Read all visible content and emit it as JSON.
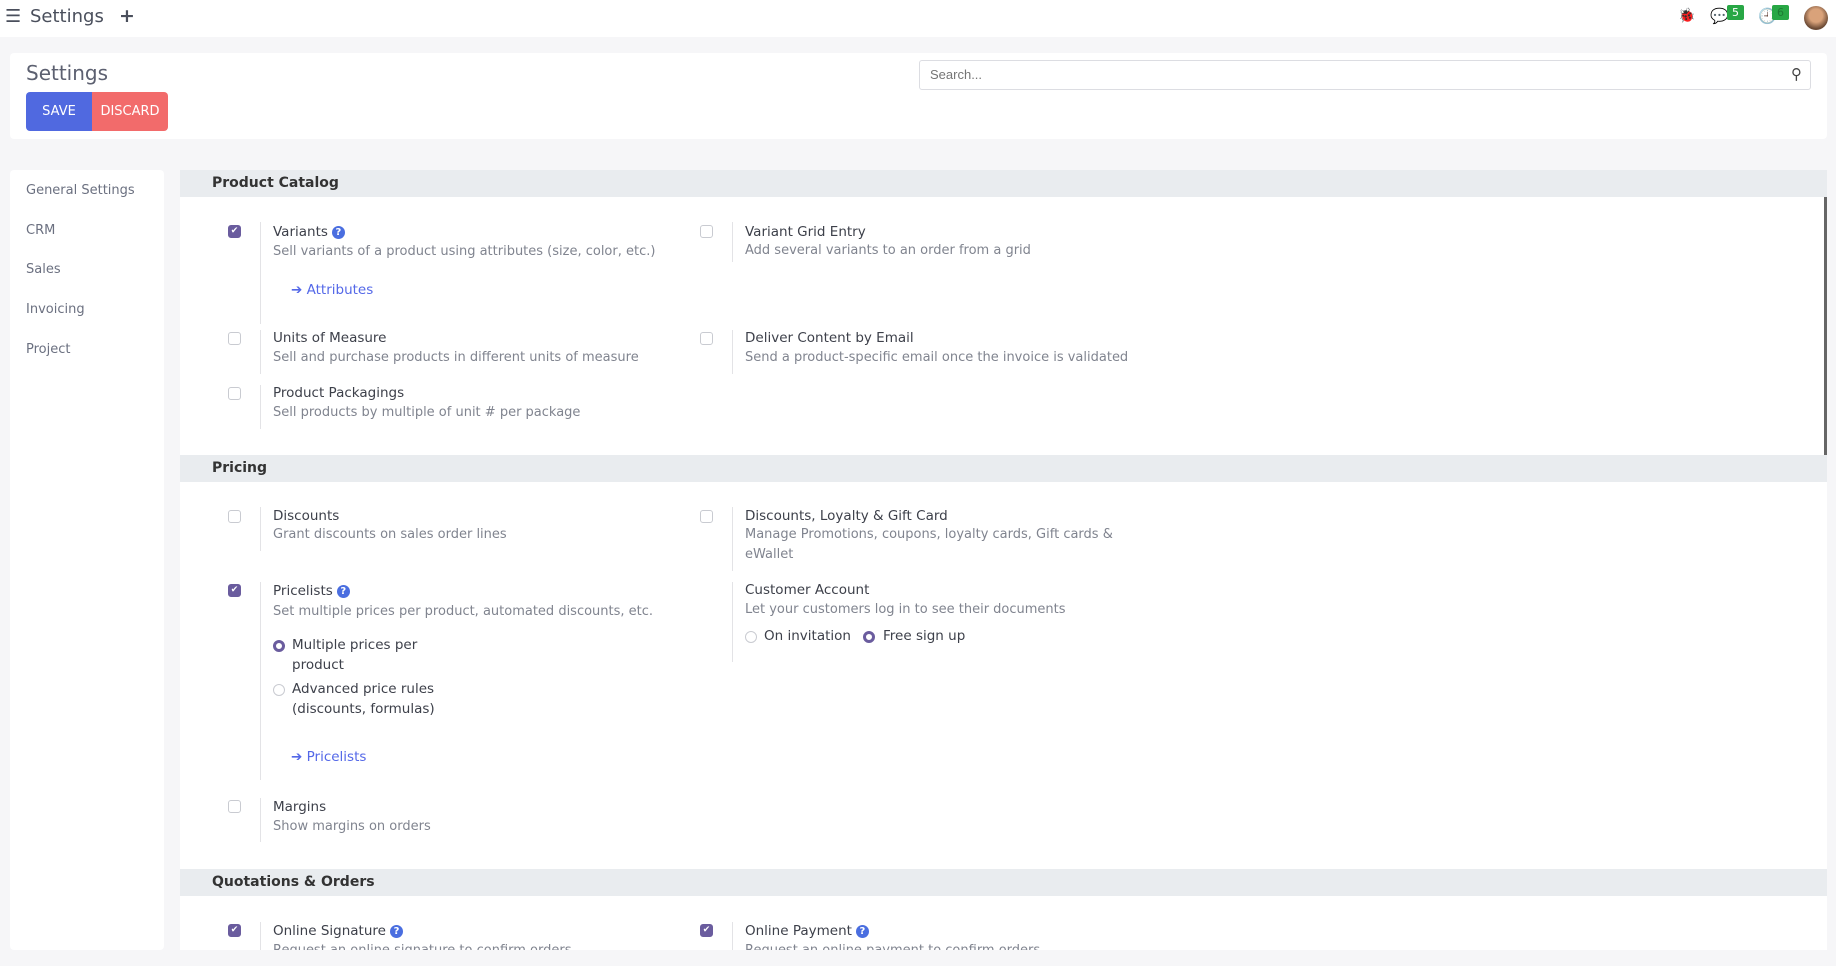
{
  "topbar": {
    "title": "Settings",
    "chat_count": "5",
    "activity_count": "6"
  },
  "header": {
    "title": "Settings",
    "save": "SAVE",
    "discard": "DISCARD",
    "search_placeholder": "Search..."
  },
  "sidebar": {
    "items": [
      "General Settings",
      "CRM",
      "Sales",
      "Invoicing",
      "Project"
    ]
  },
  "sections": {
    "catalog": {
      "title": "Product Catalog",
      "variants": {
        "title": "Variants",
        "desc": "Sell variants of a product using attributes (size, color, etc.)",
        "link": "Attributes",
        "checked": true
      },
      "grid": {
        "title": "Variant Grid Entry",
        "desc": "Add several variants to an order from a grid",
        "checked": false
      },
      "uom": {
        "title": "Units of Measure",
        "desc": "Sell and purchase products in different units of measure",
        "checked": false
      },
      "email": {
        "title": "Deliver Content by Email",
        "desc": "Send a product-specific email once the invoice is validated",
        "checked": false
      },
      "pack": {
        "title": "Product Packagings",
        "desc": "Sell products by multiple of unit # per package",
        "checked": false
      }
    },
    "pricing": {
      "title": "Pricing",
      "discounts": {
        "title": "Discounts",
        "desc": "Grant discounts on sales order lines",
        "checked": false
      },
      "loyalty": {
        "title": "Discounts, Loyalty & Gift Card",
        "desc1": "Manage Promotions, coupons, loyalty cards, Gift cards &",
        "desc2": "eWallet",
        "checked": false
      },
      "pricelists": {
        "title": "Pricelists",
        "desc": "Set multiple prices per product, automated discounts, etc.",
        "opt1a": "Multiple prices per",
        "opt1b": "product",
        "opt2a": "Advanced price rules",
        "opt2b": "(discounts, formulas)",
        "selected": "Multiple prices per product",
        "link": "Pricelists",
        "checked": true
      },
      "customer": {
        "title": "Customer Account",
        "desc": "Let your customers log in to see their documents",
        "opt1": "On invitation",
        "opt2": "Free sign up",
        "selected": "Free sign up"
      },
      "margins": {
        "title": "Margins",
        "desc": "Show margins on orders",
        "checked": false
      }
    },
    "quotes": {
      "title": "Quotations & Orders",
      "signature": {
        "title": "Online Signature",
        "desc": "Request an online signature to confirm orders",
        "checked": true
      },
      "payment": {
        "title": "Online Payment",
        "desc": "Request an online payment to confirm orders",
        "checked": true
      }
    }
  },
  "colors": {
    "save": "#5069e0",
    "discard": "#f26b6b",
    "accent": "#6a5c9e",
    "link": "#5468e8"
  }
}
